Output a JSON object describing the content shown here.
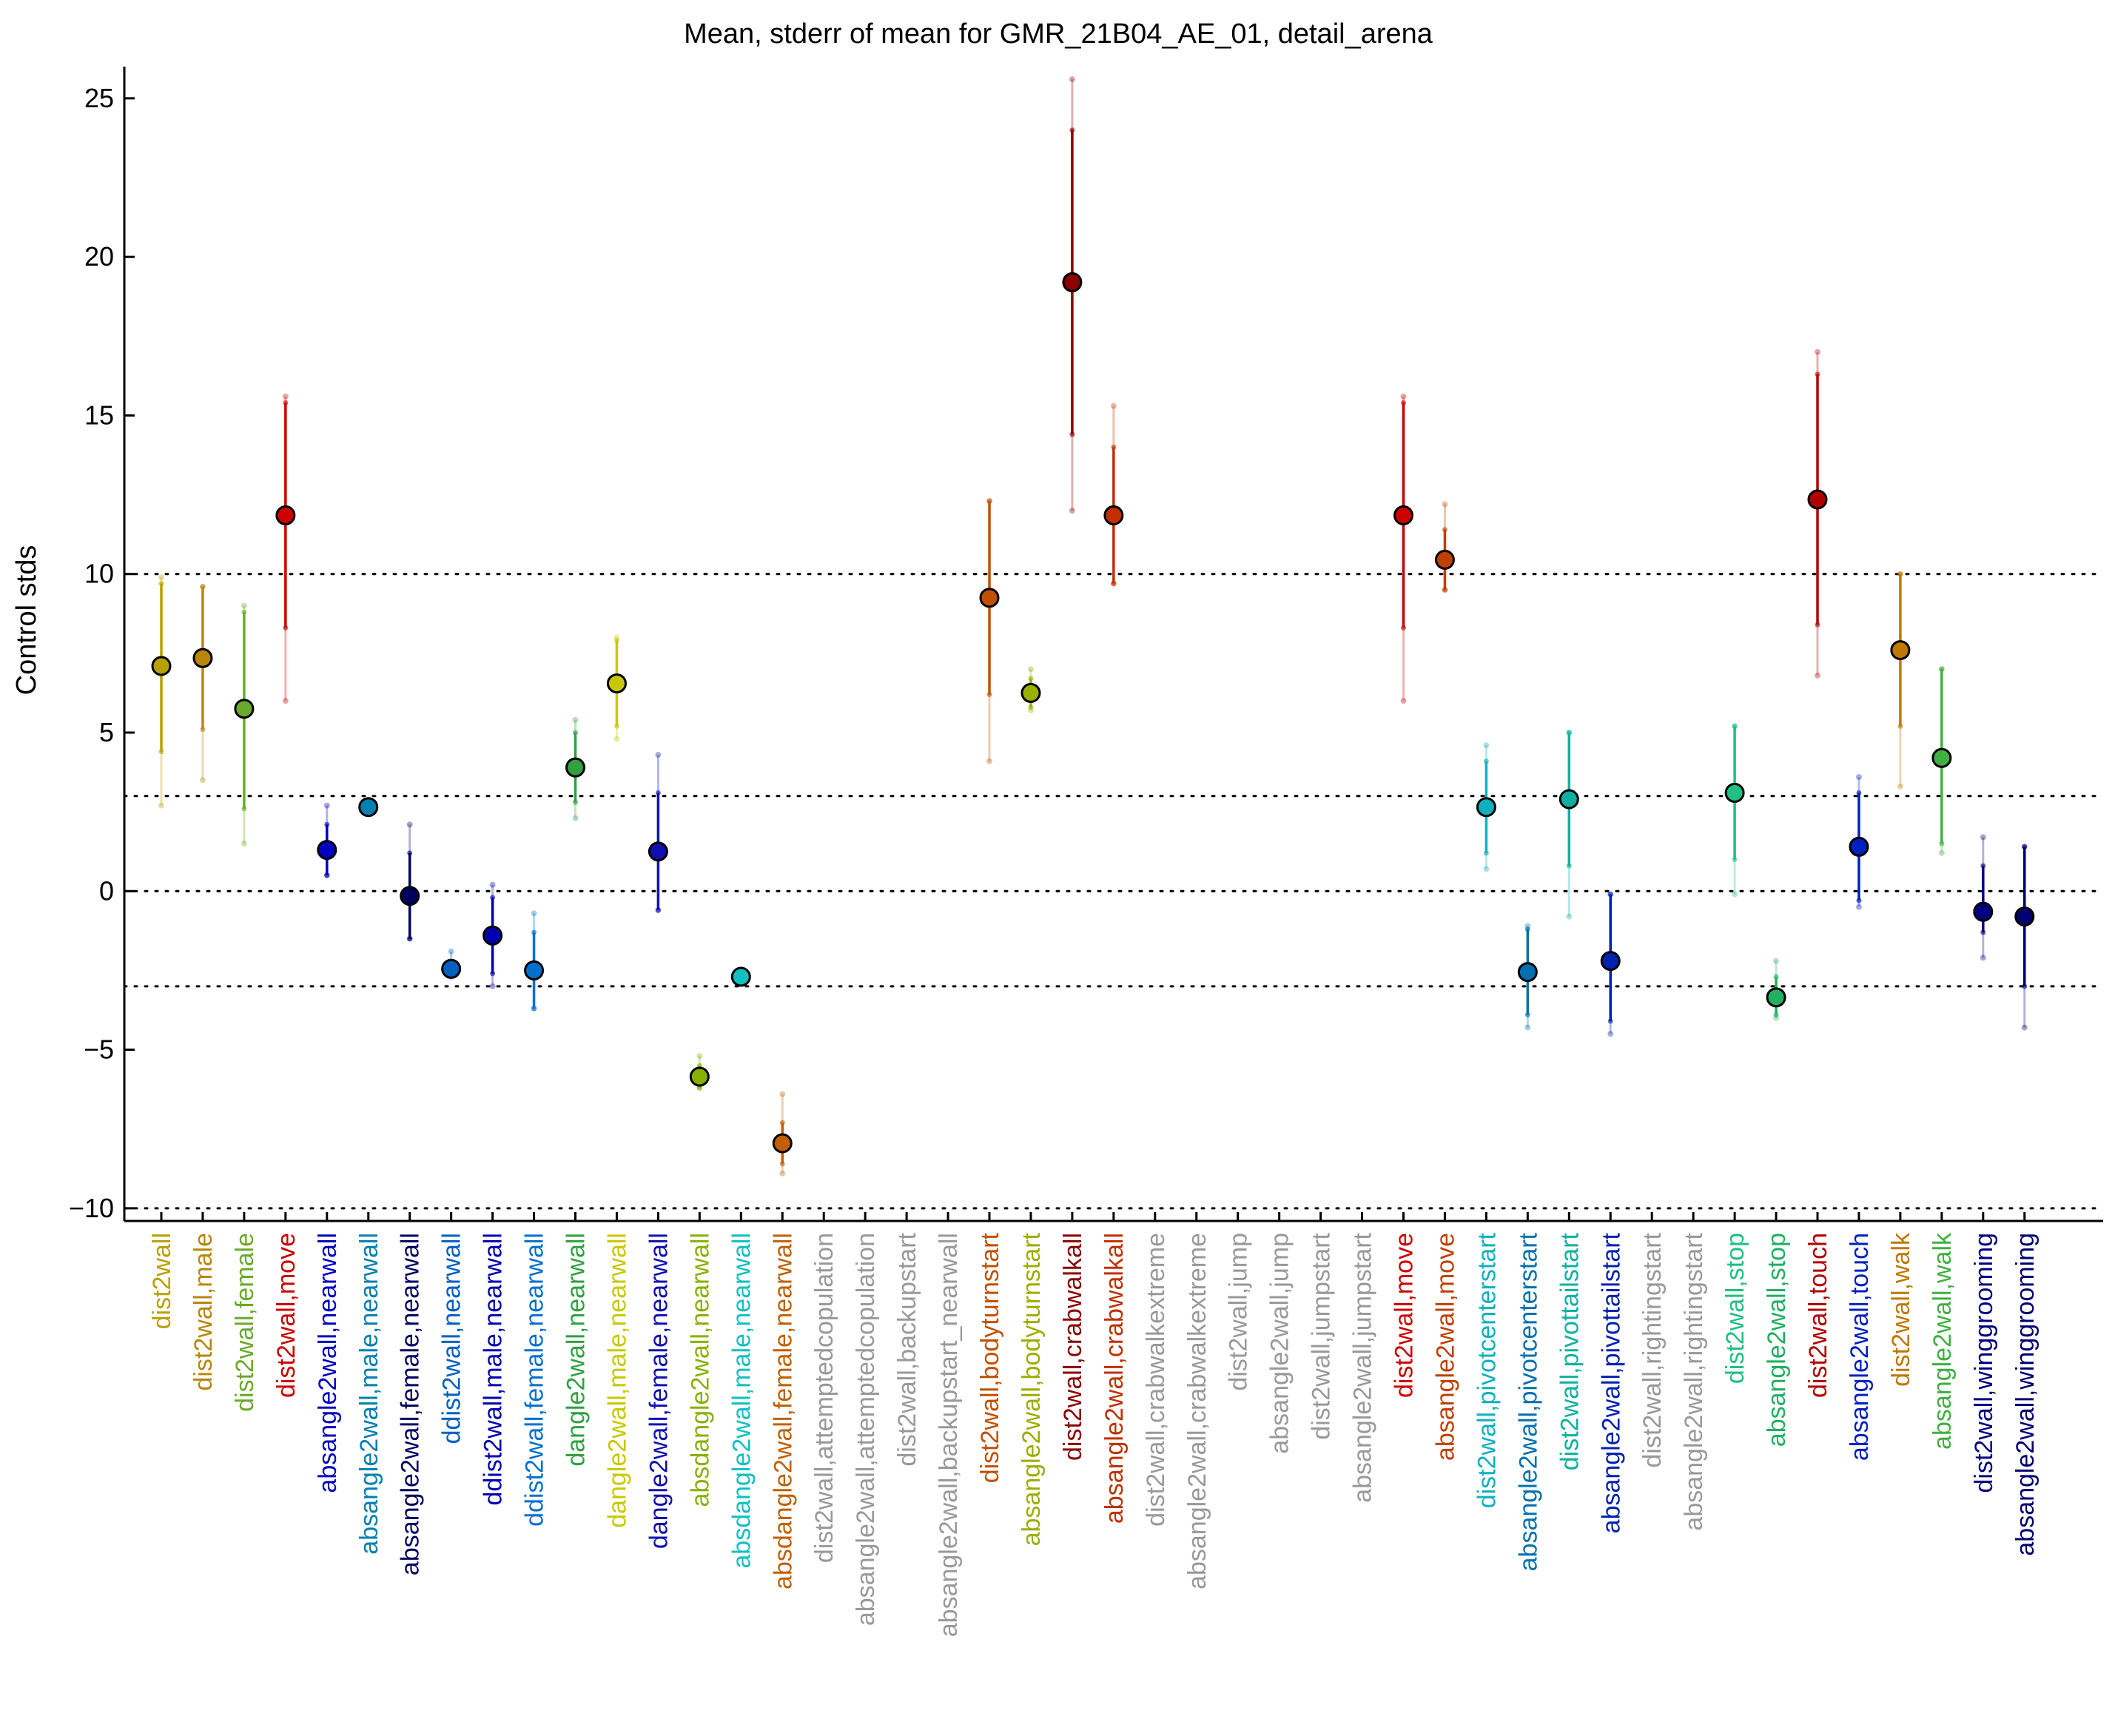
{
  "chart_data": {
    "type": "scatter",
    "title": "Mean, stderr of mean for GMR_21B04_AE_01, detail_arena",
    "ylabel": "Control stds",
    "xlabel": "",
    "ylim": [
      -10.4,
      26
    ],
    "yticks": [
      -10,
      -5,
      0,
      5,
      10,
      15,
      20,
      25
    ],
    "reference_lines": [
      -10,
      -3,
      0,
      3,
      10
    ],
    "grid": false,
    "categories": [
      {
        "label": "dist2wall",
        "color": "#b8a000",
        "mean": 7.1,
        "sem_lo": 4.4,
        "sem_hi": 9.7,
        "ext_lo": 2.7,
        "ext_hi": 9.9
      },
      {
        "label": "dist2wall,male",
        "color": "#b8860b",
        "mean": 7.35,
        "sem_lo": 5.1,
        "sem_hi": 9.6,
        "ext_lo": 3.5,
        "ext_hi": 9.6
      },
      {
        "label": "dist2wall,female",
        "color": "#6aaa2a",
        "mean": 5.75,
        "sem_lo": 2.6,
        "sem_hi": 8.8,
        "ext_lo": 1.5,
        "ext_hi": 9.0
      },
      {
        "label": "dist2wall,move",
        "color": "#cc0000",
        "mean": 11.85,
        "sem_lo": 8.3,
        "sem_hi": 15.4,
        "ext_lo": 6.0,
        "ext_hi": 15.6
      },
      {
        "label": "absangle2wall,nearwall",
        "color": "#0000c0",
        "mean": 1.3,
        "sem_lo": 0.5,
        "sem_hi": 2.1,
        "ext_lo": 0.5,
        "ext_hi": 2.7
      },
      {
        "label": "absangle2wall,male,nearwall",
        "color": "#0080b0",
        "mean": 2.65,
        "sem_lo": 2.55,
        "sem_hi": 2.75,
        "ext_lo": 2.5,
        "ext_hi": 2.8
      },
      {
        "label": "absangle2wall,female,nearwall",
        "color": "#000060",
        "mean": -0.15,
        "sem_lo": -1.5,
        "sem_hi": 1.2,
        "ext_lo": -1.5,
        "ext_hi": 2.1
      },
      {
        "label": "ddist2wall,nearwall",
        "color": "#0060c0",
        "mean": -2.45,
        "sem_lo": -2.6,
        "sem_hi": -2.3,
        "ext_lo": -2.7,
        "ext_hi": -1.9
      },
      {
        "label": "ddist2wall,male,nearwall",
        "color": "#0000b0",
        "mean": -1.4,
        "sem_lo": -2.6,
        "sem_hi": -0.2,
        "ext_lo": -3.0,
        "ext_hi": 0.2
      },
      {
        "label": "ddist2wall,female,nearwall",
        "color": "#0070d0",
        "mean": -2.5,
        "sem_lo": -3.7,
        "sem_hi": -1.3,
        "ext_lo": -3.7,
        "ext_hi": -0.7
      },
      {
        "label": "dangle2wall,nearwall",
        "color": "#30a040",
        "mean": 3.9,
        "sem_lo": 2.8,
        "sem_hi": 5.0,
        "ext_lo": 2.3,
        "ext_hi": 5.4
      },
      {
        "label": "dangle2wall,male,nearwall",
        "color": "#c8c800",
        "mean": 6.55,
        "sem_lo": 5.2,
        "sem_hi": 7.9,
        "ext_lo": 4.8,
        "ext_hi": 8.0
      },
      {
        "label": "dangle2wall,female,nearwall",
        "color": "#1010b0",
        "mean": 1.25,
        "sem_lo": -0.6,
        "sem_hi": 3.1,
        "ext_lo": -0.6,
        "ext_hi": 4.3
      },
      {
        "label": "absdangle2wall,nearwall",
        "color": "#88b000",
        "mean": -5.85,
        "sem_lo": -6.2,
        "sem_hi": -5.5,
        "ext_lo": -6.2,
        "ext_hi": -5.2
      },
      {
        "label": "absdangle2wall,male,nearwall",
        "color": "#10c0c0",
        "mean": -2.7,
        "sem_lo": -2.8,
        "sem_hi": -2.6,
        "ext_lo": -2.8,
        "ext_hi": -2.6
      },
      {
        "label": "absdangle2wall,female,nearwall",
        "color": "#c06000",
        "mean": -7.95,
        "sem_lo": -8.6,
        "sem_hi": -7.3,
        "ext_lo": -8.9,
        "ext_hi": -6.4
      },
      {
        "label": "dist2wall,attemptedcopulation",
        "color": "#999999"
      },
      {
        "label": "absangle2wall,attemptedcopulation",
        "color": "#999999"
      },
      {
        "label": "dist2wall,backupstart",
        "color": "#999999"
      },
      {
        "label": "absangle2wall,backupstart_nearwall",
        "color": "#999999"
      },
      {
        "label": "dist2wall,bodyturnstart",
        "color": "#c05000",
        "mean": 9.25,
        "sem_lo": 6.2,
        "sem_hi": 12.3,
        "ext_lo": 4.1,
        "ext_hi": 12.3
      },
      {
        "label": "absangle2wall,bodyturnstart",
        "color": "#98b000",
        "mean": 6.25,
        "sem_lo": 5.8,
        "sem_hi": 6.7,
        "ext_lo": 5.7,
        "ext_hi": 7.0
      },
      {
        "label": "dist2wall,crabwalkall",
        "color": "#8b0000",
        "mean": 19.2,
        "sem_lo": 14.4,
        "sem_hi": 24.0,
        "ext_lo": 12.0,
        "ext_hi": 25.6
      },
      {
        "label": "absangle2wall,crabwalkall",
        "color": "#c03000",
        "mean": 11.85,
        "sem_lo": 9.7,
        "sem_hi": 14.0,
        "ext_lo": 9.7,
        "ext_hi": 15.3
      },
      {
        "label": "dist2wall,crabwalkextreme",
        "color": "#999999"
      },
      {
        "label": "absangle2wall,crabwalkextreme",
        "color": "#999999"
      },
      {
        "label": "dist2wall,jump",
        "color": "#999999"
      },
      {
        "label": "absangle2wall,jump",
        "color": "#999999"
      },
      {
        "label": "dist2wall,jumpstart",
        "color": "#999999"
      },
      {
        "label": "absangle2wall,jumpstart",
        "color": "#999999"
      },
      {
        "label": "dist2wall,move",
        "color": "#cc0000",
        "mean": 11.85,
        "sem_lo": 8.3,
        "sem_hi": 15.4,
        "ext_lo": 6.0,
        "ext_hi": 15.6
      },
      {
        "label": "absangle2wall,move",
        "color": "#c04000",
        "mean": 10.45,
        "sem_lo": 9.5,
        "sem_hi": 11.4,
        "ext_lo": 9.5,
        "ext_hi": 12.2
      },
      {
        "label": "dist2wall,pivotcenterstart",
        "color": "#10b0c0",
        "mean": 2.65,
        "sem_lo": 1.2,
        "sem_hi": 4.1,
        "ext_lo": 0.7,
        "ext_hi": 4.6
      },
      {
        "label": "absangle2wall,pivotcenterstart",
        "color": "#0070b0",
        "mean": -2.55,
        "sem_lo": -3.9,
        "sem_hi": -1.2,
        "ext_lo": -4.3,
        "ext_hi": -1.1
      },
      {
        "label": "dist2wall,pivottailstart",
        "color": "#10b0a0",
        "mean": 2.9,
        "sem_lo": 0.8,
        "sem_hi": 5.0,
        "ext_lo": -0.8,
        "ext_hi": 5.0
      },
      {
        "label": "absangle2wall,pivottailstart",
        "color": "#0020b0",
        "mean": -2.2,
        "sem_lo": -4.1,
        "sem_hi": -0.1,
        "ext_lo": -4.5,
        "ext_hi": -0.1
      },
      {
        "label": "dist2wall,rightingstart",
        "color": "#999999"
      },
      {
        "label": "absangle2wall,rightingstart",
        "color": "#999999"
      },
      {
        "label": "dist2wall,stop",
        "color": "#20c080",
        "mean": 3.1,
        "sem_lo": 1.0,
        "sem_hi": 5.2,
        "ext_lo": -0.1,
        "ext_hi": 5.2
      },
      {
        "label": "absangle2wall,stop",
        "color": "#20b060",
        "mean": -3.35,
        "sem_lo": -3.9,
        "sem_hi": -2.7,
        "ext_lo": -4.0,
        "ext_hi": -2.2
      },
      {
        "label": "dist2wall,touch",
        "color": "#b00000",
        "mean": 12.35,
        "sem_lo": 8.4,
        "sem_hi": 16.3,
        "ext_lo": 6.8,
        "ext_hi": 17.0
      },
      {
        "label": "absangle2wall,touch",
        "color": "#0020c0",
        "mean": 1.4,
        "sem_lo": -0.3,
        "sem_hi": 3.1,
        "ext_lo": -0.5,
        "ext_hi": 3.6
      },
      {
        "label": "dist2wall,walk",
        "color": "#c07800",
        "mean": 7.6,
        "sem_lo": 5.2,
        "sem_hi": 10.0,
        "ext_lo": 3.3,
        "ext_hi": 10.0
      },
      {
        "label": "absangle2wall,walk",
        "color": "#40b040",
        "mean": 4.2,
        "sem_lo": 1.5,
        "sem_hi": 7.0,
        "ext_lo": 1.2,
        "ext_hi": 7.0
      },
      {
        "label": "dist2wall,winggrooming",
        "color": "#000080",
        "mean": -0.65,
        "sem_lo": -1.3,
        "sem_hi": 0.8,
        "ext_lo": -2.1,
        "ext_hi": 1.7
      },
      {
        "label": "absangle2wall,winggrooming",
        "color": "#000070",
        "mean": -0.8,
        "sem_lo": -3.0,
        "sem_hi": 1.4,
        "ext_lo": -4.3,
        "ext_hi": 1.4
      }
    ]
  }
}
